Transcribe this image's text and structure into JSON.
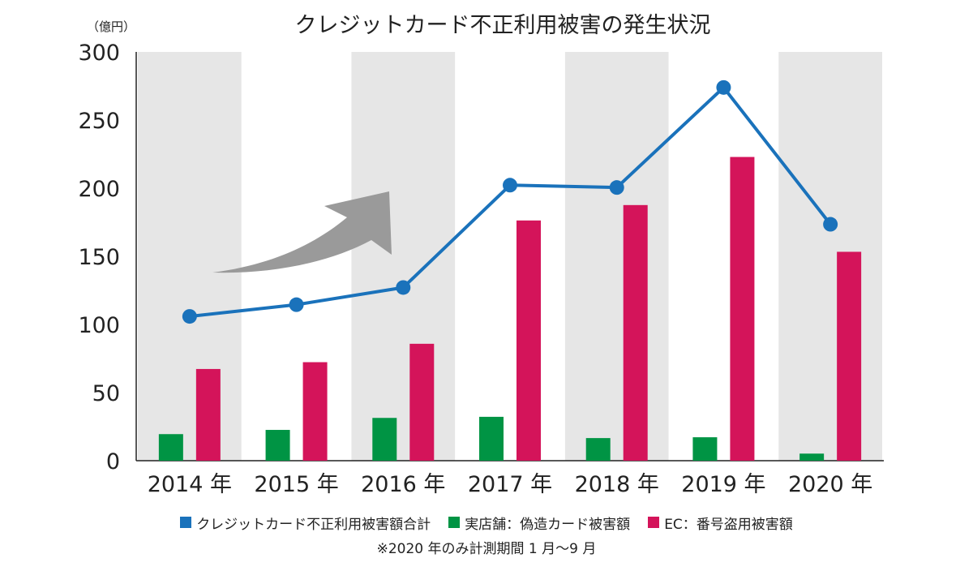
{
  "chart_data": {
    "type": "bar",
    "title": "クレジットカード不正利用被害の発生状況",
    "unit_label": "（億円）",
    "categories": [
      "2014 年",
      "2015 年",
      "2016 年",
      "2017 年",
      "2018 年",
      "2019 年",
      "2020 年"
    ],
    "ylim": [
      0,
      300
    ],
    "yticks": [
      0,
      50,
      100,
      150,
      200,
      250,
      300
    ],
    "grid": false,
    "shaded_years": [
      0,
      2,
      4,
      6
    ],
    "legend_position": "bottom",
    "series": [
      {
        "name": "クレジットカード不正利用被害額合計",
        "type": "line",
        "color": "#1a72bb",
        "values": [
          105.9,
          114.5,
          127.1,
          202.2,
          200.5,
          273.9,
          173.5
        ]
      },
      {
        "name": "実店舗：偽造カード被害額",
        "type": "bar",
        "color": "#009444",
        "values": [
          19.5,
          22.6,
          31.4,
          32.2,
          16.6,
          17.2,
          5.2
        ]
      },
      {
        "name": "EC：番号盗用被害額",
        "type": "bar",
        "color": "#d4145a",
        "values": [
          67.3,
          72.3,
          85.8,
          176.3,
          187.6,
          222.9,
          153.3
        ]
      }
    ],
    "annotations": [
      "※2020 年のみ計測期間 1 月〜9 月"
    ]
  },
  "colors": {
    "shade": "#e6e6e6",
    "arrow": "#9a9a9a",
    "axis": "#222222"
  },
  "icons": {
    "trend_arrow": "curved-up-arrow-icon"
  }
}
